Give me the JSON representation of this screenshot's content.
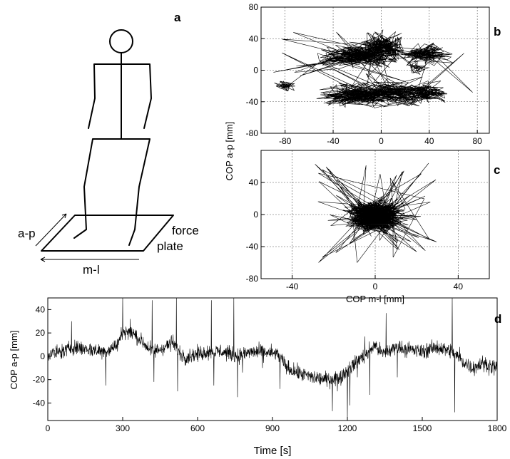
{
  "panel_labels": {
    "a": "a",
    "b": "b",
    "c": "c",
    "d": "d"
  },
  "diagram": {
    "ap_label": "a-p",
    "ml_label": "m-l",
    "force_label": "force",
    "plate_label": "plate"
  },
  "colors": {
    "trace": "#000000",
    "background": "#ffffff"
  },
  "chart_data": [
    {
      "panel": "b",
      "type": "line",
      "xlim": [
        -100,
        90
      ],
      "ylim": [
        -80,
        80
      ],
      "xticks": [
        -80,
        -40,
        0,
        40,
        80
      ],
      "yticks": [
        -80,
        -40,
        0,
        40,
        80
      ],
      "grid": true,
      "clusters": [
        {
          "x": -80,
          "y": -20,
          "spread": [
            4,
            3
          ],
          "n": 50
        },
        {
          "x": -20,
          "y": 18,
          "spread": [
            13,
            6
          ],
          "n": 260
        },
        {
          "x": 0,
          "y": 28,
          "spread": [
            9,
            9
          ],
          "n": 220
        },
        {
          "x": -20,
          "y": -32,
          "spread": [
            13,
            7
          ],
          "n": 240
        },
        {
          "x": 10,
          "y": -30,
          "spread": [
            13,
            7
          ],
          "n": 160
        },
        {
          "x": 35,
          "y": -28,
          "spread": [
            9,
            6
          ],
          "n": 160
        },
        {
          "x": 38,
          "y": 20,
          "spread": [
            9,
            6
          ],
          "n": 140
        },
        {
          "x": 30,
          "y": 2,
          "spread": [
            4,
            4
          ],
          "n": 40
        }
      ]
    },
    {
      "panel": "c",
      "type": "line",
      "xlim": [
        -55,
        55
      ],
      "ylim": [
        -80,
        80
      ],
      "xticks": [
        -40,
        0,
        40
      ],
      "yticks": [
        -80,
        -40,
        0,
        40
      ],
      "xlabel": "COP m-l [mm]",
      "grid": true,
      "center": {
        "x": 0,
        "y": -2
      },
      "spread": [
        6,
        9
      ],
      "n": 900
    },
    {
      "panel": "d",
      "type": "line",
      "xlim": [
        0,
        1800
      ],
      "ylim": [
        -55,
        50
      ],
      "xticks": [
        0,
        300,
        600,
        900,
        1200,
        1500,
        1800
      ],
      "yticks": [
        -40,
        -20,
        0,
        20,
        40
      ],
      "xlabel": "Time [s]",
      "ylabel": "COP a-p [mm]",
      "baseline": [
        [
          0,
          2
        ],
        [
          60,
          4
        ],
        [
          100,
          8
        ],
        [
          160,
          6
        ],
        [
          230,
          4
        ],
        [
          280,
          10
        ],
        [
          300,
          22
        ],
        [
          340,
          20
        ],
        [
          380,
          12
        ],
        [
          420,
          4
        ],
        [
          460,
          7
        ],
        [
          500,
          12
        ],
        [
          530,
          2
        ],
        [
          560,
          0
        ],
        [
          640,
          4
        ],
        [
          700,
          4
        ],
        [
          760,
          0
        ],
        [
          820,
          4
        ],
        [
          880,
          3
        ],
        [
          920,
          2
        ],
        [
          960,
          -10
        ],
        [
          1000,
          -14
        ],
        [
          1060,
          -18
        ],
        [
          1120,
          -20
        ],
        [
          1170,
          -18
        ],
        [
          1220,
          -8
        ],
        [
          1250,
          -2
        ],
        [
          1280,
          2
        ],
        [
          1310,
          10
        ],
        [
          1340,
          2
        ],
        [
          1400,
          8
        ],
        [
          1440,
          6
        ],
        [
          1500,
          4
        ],
        [
          1560,
          8
        ],
        [
          1620,
          4
        ],
        [
          1660,
          -4
        ],
        [
          1700,
          -10
        ],
        [
          1740,
          -6
        ],
        [
          1800,
          -10
        ]
      ],
      "spikes": [
        [
          95,
          30
        ],
        [
          232,
          -25
        ],
        [
          300,
          50
        ],
        [
          330,
          32
        ],
        [
          418,
          48
        ],
        [
          425,
          -22
        ],
        [
          515,
          50
        ],
        [
          520,
          -30
        ],
        [
          550,
          -8
        ],
        [
          655,
          48
        ],
        [
          665,
          -25
        ],
        [
          745,
          50
        ],
        [
          760,
          -35
        ],
        [
          780,
          -14
        ],
        [
          860,
          -10
        ],
        [
          930,
          -28
        ],
        [
          1140,
          -47
        ],
        [
          1160,
          -30
        ],
        [
          1200,
          -55
        ],
        [
          1210,
          -42
        ],
        [
          1240,
          -18
        ],
        [
          1270,
          17
        ],
        [
          1290,
          -33
        ],
        [
          1355,
          37
        ],
        [
          1400,
          -18
        ],
        [
          1620,
          50
        ],
        [
          1630,
          -48
        ],
        [
          1650,
          8
        ]
      ]
    }
  ]
}
